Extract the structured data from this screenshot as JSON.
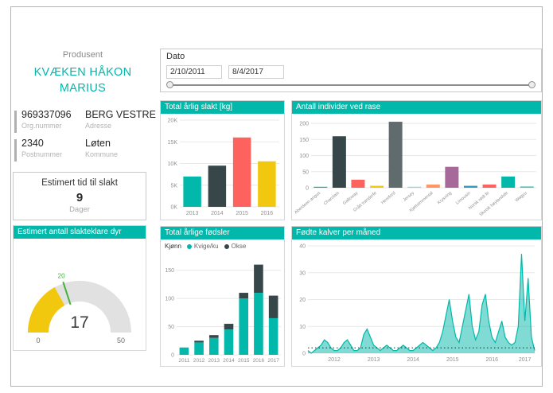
{
  "producer": {
    "section_label": "Produsent",
    "name_line1": "KVÆKEN HÅKON",
    "name_line2": "MARIUS",
    "details": {
      "rows": [
        {
          "col1_value": "969337096",
          "col1_label": "Org.nummer",
          "col2_value": "BERG VESTRE",
          "col2_label": "Adresse"
        },
        {
          "col1_value": "2340",
          "col1_label": "Postnummer",
          "col2_value": "Løten",
          "col2_label": "Kommune"
        }
      ]
    },
    "slaughter_time_card": {
      "title": "Estimert tid til slakt",
      "value": "9",
      "unit": "Dager"
    }
  },
  "date_slicer": {
    "title": "Dato",
    "start_value": "2/10/2011",
    "end_value": "8/4/2017"
  },
  "colors": {
    "accent": "#01B8AA",
    "header_bg": "#01B8AA"
  },
  "chart_data": [
    {
      "id": "gauge",
      "type": "gauge",
      "title": "Estimert antall slakteklare dyr",
      "min": 0,
      "max": 50,
      "value": 17,
      "target": 20,
      "value_label": "17",
      "min_label": "0",
      "max_label": "50",
      "target_label": "20",
      "fill_color": "#F2C80F",
      "track_color": "#E1E1E1",
      "target_color": "#44B13C"
    },
    {
      "id": "slakt",
      "type": "bar",
      "title": "Total årlig slakt [kg]",
      "categories": [
        "2013",
        "2014",
        "2015",
        "2016"
      ],
      "values": [
        7000,
        9500,
        16000,
        10500
      ],
      "bar_colors": [
        "#01B8AA",
        "#374649",
        "#FD625E",
        "#F2C80F"
      ],
      "ylim": [
        0,
        20000
      ],
      "yticks": [
        {
          "v": 0,
          "label": "0K"
        },
        {
          "v": 5000,
          "label": "5K"
        },
        {
          "v": 10000,
          "label": "10K"
        },
        {
          "v": 15000,
          "label": "15K"
        },
        {
          "v": 20000,
          "label": "20K"
        }
      ]
    },
    {
      "id": "rase",
      "type": "bar",
      "title": "Antall individer ved rase",
      "categories": [
        "Aberdeen angus",
        "Charolais",
        "Galloway",
        "Grått trønderfe",
        "Hereford",
        "Jersey",
        "Kjøttsimmental",
        "Krysning",
        "Limousin",
        "Norsk rødt fe",
        "Skotsk høylandsfe",
        "Wagyu"
      ],
      "values": [
        3,
        160,
        25,
        6,
        205,
        3,
        10,
        65,
        6,
        10,
        35,
        4
      ],
      "bar_colors": [
        "#01B8AA",
        "#374649",
        "#FD625E",
        "#F2C80F",
        "#5F6B6D",
        "#8AD4EB",
        "#FE9666",
        "#A66999",
        "#3599B8",
        "#FD625E",
        "#01B8AA",
        "#4AC5BB"
      ],
      "ylim": [
        0,
        215
      ],
      "rotate_labels": true,
      "yticks": [
        {
          "v": 0,
          "label": "0"
        },
        {
          "v": 50,
          "label": "50"
        },
        {
          "v": 100,
          "label": "100"
        },
        {
          "v": 150,
          "label": "150"
        },
        {
          "v": 200,
          "label": "200"
        }
      ]
    },
    {
      "id": "fodsler",
      "type": "stacked-bar",
      "title": "Total årlige fødsler",
      "legend_label": "Kjønn",
      "categories": [
        "2011",
        "2012",
        "2013",
        "2014",
        "2015",
        "2016",
        "2017"
      ],
      "series": [
        {
          "name": "Kvige/ku",
          "color": "#01B8AA",
          "values": [
            13,
            22,
            30,
            45,
            100,
            110,
            65
          ]
        },
        {
          "name": "Okse",
          "color": "#374649",
          "values": [
            0,
            3,
            5,
            10,
            10,
            50,
            40
          ]
        }
      ],
      "ylim": [
        0,
        175
      ],
      "yticks": [
        {
          "v": 0,
          "label": "0"
        },
        {
          "v": 50,
          "label": "50"
        },
        {
          "v": 100,
          "label": "100"
        },
        {
          "v": 150,
          "label": "150"
        }
      ]
    },
    {
      "id": "kalver",
      "type": "area",
      "title": "Fødte kalver per måned",
      "color": "#01B8AA",
      "values": [
        1,
        0,
        1,
        2,
        3,
        5,
        4,
        2,
        1,
        1,
        2,
        4,
        5,
        3,
        1,
        1,
        2,
        7,
        9,
        6,
        3,
        2,
        1,
        2,
        3,
        2,
        1,
        1,
        2,
        3,
        2,
        1,
        1,
        2,
        3,
        4,
        3,
        2,
        1,
        2,
        4,
        8,
        14,
        20,
        12,
        6,
        4,
        10,
        16,
        22,
        10,
        5,
        8,
        18,
        22,
        12,
        6,
        4,
        8,
        12,
        6,
        4,
        3,
        4,
        10,
        37,
        12,
        28,
        6,
        1
      ],
      "ylim": [
        0,
        40
      ],
      "yticks": [
        {
          "v": 0,
          "label": "0"
        },
        {
          "v": 10,
          "label": "10"
        },
        {
          "v": 20,
          "label": "20"
        },
        {
          "v": 30,
          "label": "30"
        },
        {
          "v": 40,
          "label": "40"
        }
      ],
      "x_ticks": [
        {
          "label": "2012",
          "index": 8
        },
        {
          "label": "2013",
          "index": 20
        },
        {
          "label": "2014",
          "index": 32
        },
        {
          "label": "2015",
          "index": 44
        },
        {
          "label": "2016",
          "index": 56
        },
        {
          "label": "2017",
          "index": 66
        }
      ],
      "reference_value": 2
    }
  ]
}
